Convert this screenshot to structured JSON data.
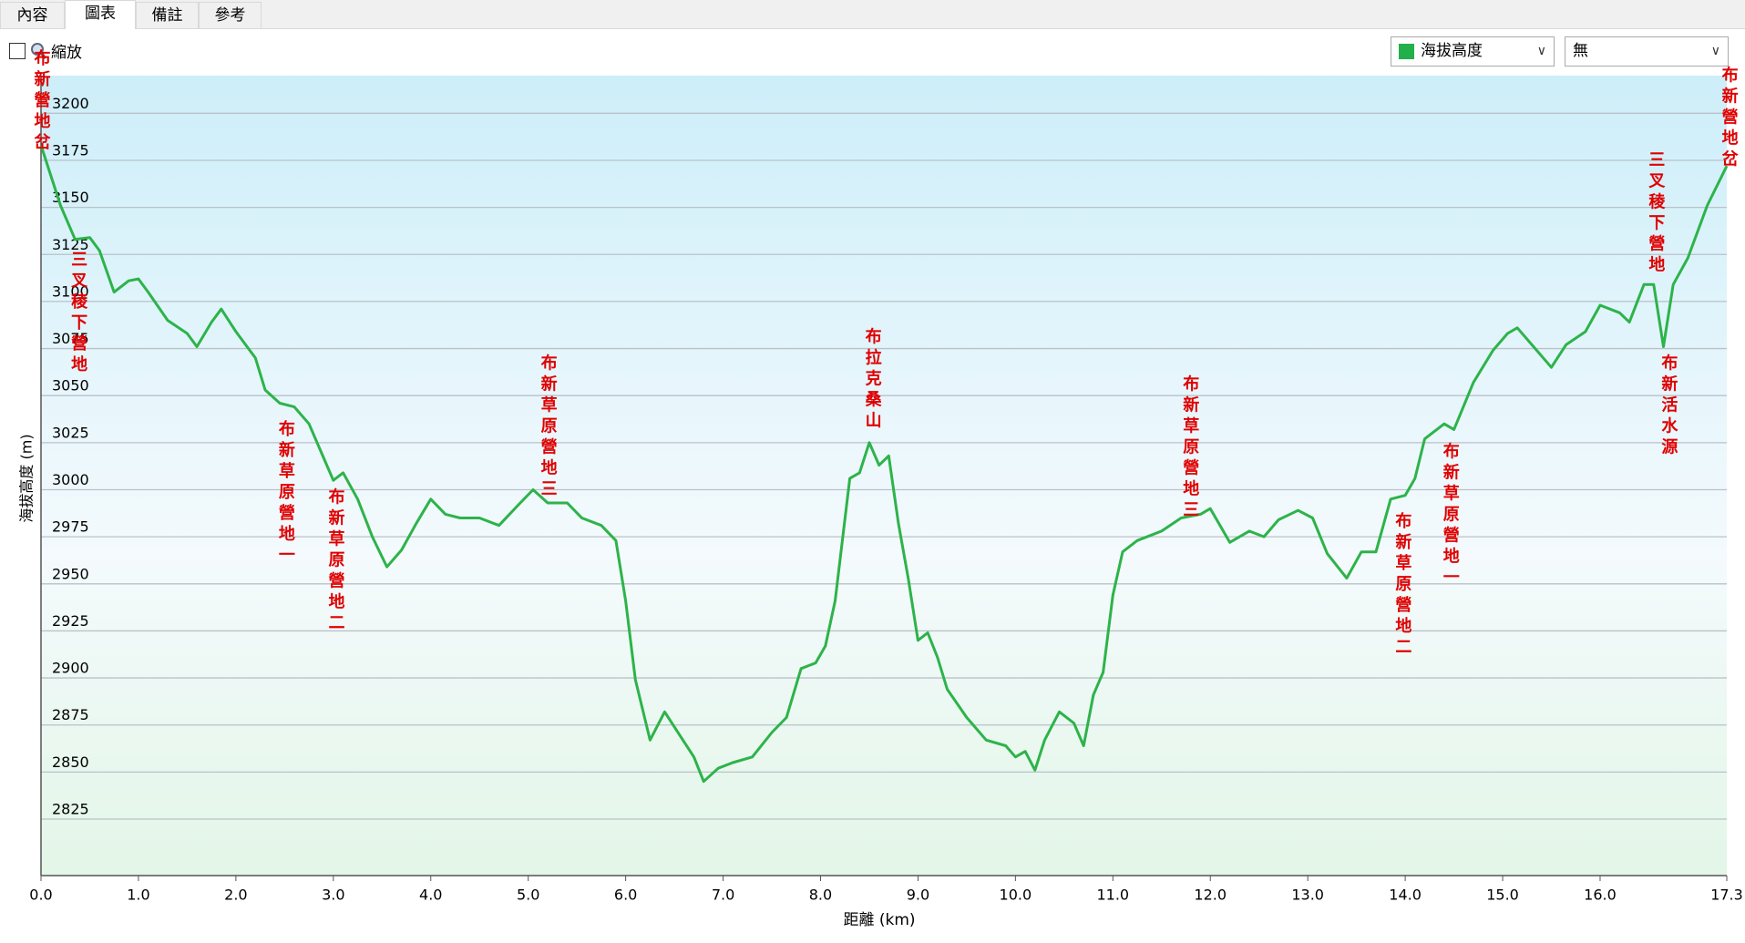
{
  "tabs": [
    "內容",
    "圖表",
    "備註",
    "參考"
  ],
  "zoom_label": "縮放",
  "dropdowns": [
    "海拔高度",
    "無"
  ],
  "chart_data": {
    "type": "line",
    "xlabel": "距離 (km)",
    "ylabel": "海拔高度 (m)",
    "color": "#2db34a",
    "grid": true,
    "xlim": [
      0,
      17.3
    ],
    "ylim": [
      2795,
      3220
    ],
    "xticks": [
      {
        "value": 0,
        "label": "0.0"
      },
      {
        "value": 1,
        "label": "1.0"
      },
      {
        "value": 2,
        "label": "2.0"
      },
      {
        "value": 3,
        "label": "3.0"
      },
      {
        "value": 4,
        "label": "4.0"
      },
      {
        "value": 5,
        "label": "5.0"
      },
      {
        "value": 6,
        "label": "6.0"
      },
      {
        "value": 7,
        "label": "7.0"
      },
      {
        "value": 8,
        "label": "8.0"
      },
      {
        "value": 9,
        "label": "9.0"
      },
      {
        "value": 10,
        "label": "10.0"
      },
      {
        "value": 11,
        "label": "11.0"
      },
      {
        "value": 12,
        "label": "12.0"
      },
      {
        "value": 13,
        "label": "13.0"
      },
      {
        "value": 14,
        "label": "14.0"
      },
      {
        "value": 15,
        "label": "15.0"
      },
      {
        "value": 16,
        "label": "16.0"
      },
      17.3
    ],
    "yticks": [
      2825,
      2850,
      2875,
      2900,
      2925,
      2950,
      2975,
      3000,
      3025,
      3050,
      3075,
      3100,
      3125,
      3150,
      3175,
      3200
    ],
    "x": [
      0.0,
      0.2,
      0.35,
      0.5,
      0.6,
      0.75,
      0.9,
      1.0,
      1.1,
      1.3,
      1.5,
      1.6,
      1.75,
      1.85,
      2.0,
      2.2,
      2.3,
      2.45,
      2.6,
      2.75,
      2.9,
      3.0,
      3.1,
      3.25,
      3.4,
      3.55,
      3.7,
      3.85,
      4.0,
      4.15,
      4.3,
      4.5,
      4.7,
      4.9,
      5.05,
      5.2,
      5.4,
      5.55,
      5.75,
      5.9,
      6.0,
      6.1,
      6.25,
      6.4,
      6.55,
      6.7,
      6.8,
      6.95,
      7.1,
      7.3,
      7.5,
      7.65,
      7.8,
      7.95,
      8.05,
      8.15,
      8.3,
      8.4,
      8.5,
      8.6,
      8.7,
      8.8,
      8.9,
      9.0,
      9.1,
      9.2,
      9.3,
      9.5,
      9.7,
      9.9,
      10.0,
      10.1,
      10.2,
      10.3,
      10.45,
      10.6,
      10.7,
      10.8,
      10.9,
      11.0,
      11.1,
      11.25,
      11.5,
      11.7,
      11.9,
      12.0,
      12.2,
      12.4,
      12.55,
      12.7,
      12.9,
      13.05,
      13.2,
      13.4,
      13.55,
      13.7,
      13.85,
      14.0,
      14.1,
      14.2,
      14.4,
      14.5,
      14.7,
      14.9,
      15.05,
      15.15,
      15.3,
      15.5,
      15.65,
      15.85,
      16.0,
      16.2,
      16.3,
      16.45,
      16.55,
      16.65,
      16.75,
      16.9,
      17.1,
      17.3
    ],
    "values": [
      3183,
      3151,
      3133,
      3134,
      3127,
      3105,
      3111,
      3112,
      3105,
      3090,
      3083,
      3076,
      3089,
      3096,
      3084,
      3070,
      3053,
      3046,
      3044,
      3035,
      3017,
      3005,
      3009,
      2995,
      2975,
      2959,
      2968,
      2982,
      2995,
      2987,
      2985,
      2985,
      2981,
      2992,
      3000,
      2993,
      2993,
      2985,
      2981,
      2973,
      2941,
      2899,
      2867,
      2882,
      2870,
      2858,
      2845,
      2852,
      2855,
      2858,
      2871,
      2879,
      2905,
      2908,
      2917,
      2941,
      3006,
      3009,
      3025,
      3013,
      3018,
      2982,
      2953,
      2920,
      2924,
      2911,
      2894,
      2879,
      2867,
      2864,
      2858,
      2861,
      2851,
      2867,
      2882,
      2876,
      2864,
      2891,
      2903,
      2944,
      2967,
      2973,
      2978,
      2985,
      2987,
      2990,
      2972,
      2978,
      2975,
      2984,
      2989,
      2985,
      2966,
      2953,
      2967,
      2967,
      2995,
      2997,
      3006,
      3027,
      3035,
      3032,
      3057,
      3074,
      3083,
      3086,
      3077,
      3065,
      3077,
      3084,
      3098,
      3094,
      3089,
      3109,
      3109,
      3076,
      3109,
      3123,
      3151,
      3172
    ],
    "annotations": [
      {
        "text": "布新營地岔",
        "x": 0.0,
        "y": 3234
      },
      {
        "text": "三叉稜下營地",
        "x": 0.38,
        "y": 3127
      },
      {
        "text": "布新草原營地一",
        "x": 2.51,
        "y": 3037
      },
      {
        "text": "布新草原營地二",
        "x": 3.02,
        "y": 3001
      },
      {
        "text": "布新草原營地三",
        "x": 5.2,
        "y": 3072
      },
      {
        "text": "布拉克桑山",
        "x": 8.53,
        "y": 3086
      },
      {
        "text": "布新草原營地三",
        "x": 11.79,
        "y": 3061
      },
      {
        "text": "布新草原營地一",
        "x": 14.46,
        "y": 3025
      },
      {
        "text": "布新草原營地二",
        "x": 13.97,
        "y": 2988
      },
      {
        "text": "三叉稜下營地",
        "x": 16.57,
        "y": 3180
      },
      {
        "text": "布新活水源",
        "x": 16.7,
        "y": 3072
      },
      {
        "text": "布新營地岔",
        "x": 17.32,
        "y": 3225
      }
    ]
  }
}
